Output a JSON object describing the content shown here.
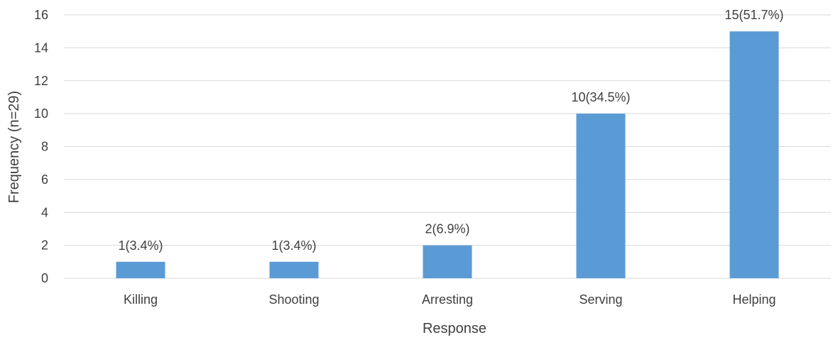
{
  "chart_data": {
    "type": "bar",
    "title": "",
    "xlabel": "Response",
    "ylabel": "Frequency (n=29)",
    "categories": [
      "Killing",
      "Shooting",
      "Arresting",
      "Serving",
      "Helping"
    ],
    "values": [
      1,
      1,
      2,
      10,
      15
    ],
    "data_labels": [
      "1(3.4%)",
      "1(3.4%)",
      "2(6.9%)",
      "10(34.5%)",
      "15(51.7%)"
    ],
    "ylim": [
      0,
      16
    ],
    "yticks": [
      "0",
      "2",
      "4",
      "6",
      "8",
      "10",
      "12",
      "14",
      "16"
    ],
    "grid": true,
    "legend": "none",
    "colors": {
      "bar": "#5b9bd5",
      "grid": "#d9d9d9",
      "text": "#404040"
    }
  }
}
